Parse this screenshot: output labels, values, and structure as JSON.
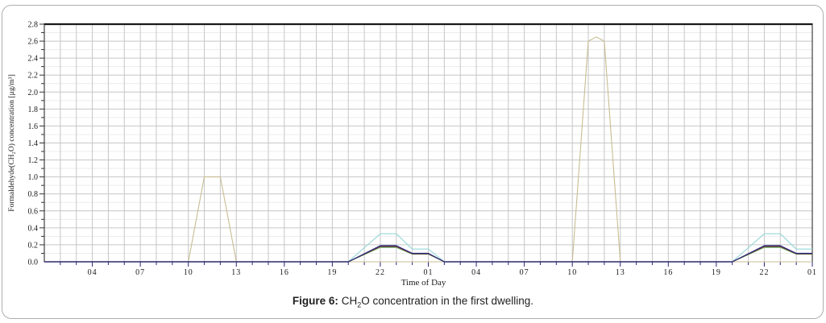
{
  "figure": {
    "caption": {
      "label": "Figure 6:",
      "chem_pre": " CH",
      "chem_sub": "2",
      "rest": "O concentration in the first dwelling."
    }
  },
  "chart_data": {
    "type": "line",
    "title": "",
    "xlabel": "Time of Day",
    "ylabel": "Formaldehyde(CH₂O) concentration [µg/m³]",
    "x_domain_hours": [
      0,
      48
    ],
    "x_domain_note": "hour 0 = 01:00 of day 1; axis spans 48 h across two days",
    "xtick_step_hours": 3,
    "xtick_labels": [
      "04",
      "07",
      "10",
      "13",
      "16",
      "19",
      "22",
      "01",
      "04",
      "07",
      "10",
      "13",
      "16",
      "19",
      "22",
      "01"
    ],
    "ylim": [
      0,
      2.8
    ],
    "ytick_step": 0.2,
    "ytick_labels": [
      "0.0",
      "0.2",
      "0.4",
      "0.6",
      "0.8",
      "1.0",
      "1.2",
      "1.4",
      "1.6",
      "1.8",
      "2.0",
      "2.2",
      "2.4",
      "2.6",
      "2.8"
    ],
    "grid": {
      "vertical_every_hours": 1,
      "horizontal_every": 0.2,
      "horizontal_minor_every": 0.1,
      "on": true
    },
    "legend": "none",
    "series": [
      {
        "name": "daytime-peaks-tan",
        "color": "#c9bd93",
        "width": 1.1,
        "points": [
          [
            0,
            0
          ],
          [
            9,
            0
          ],
          [
            10,
            1.0
          ],
          [
            11,
            1.0
          ],
          [
            12,
            0
          ],
          [
            33,
            0
          ],
          [
            34,
            2.6
          ],
          [
            34.5,
            2.65
          ],
          [
            35,
            2.6
          ],
          [
            36,
            0
          ],
          [
            48,
            0
          ]
        ]
      },
      {
        "name": "evening-cyan",
        "color": "#96d7d7",
        "width": 1.1,
        "points": [
          [
            0,
            0
          ],
          [
            19,
            0
          ],
          [
            21,
            0.33
          ],
          [
            22,
            0.33
          ],
          [
            23,
            0.15
          ],
          [
            24,
            0.15
          ],
          [
            25,
            0
          ],
          [
            43,
            0
          ],
          [
            45,
            0.33
          ],
          [
            46,
            0.33
          ],
          [
            47,
            0.15
          ],
          [
            48,
            0.15
          ]
        ]
      },
      {
        "name": "evening-green",
        "color": "#5fae5f",
        "width": 1.2,
        "points": [
          [
            0,
            0
          ],
          [
            19,
            0
          ],
          [
            21,
            0.17
          ],
          [
            22,
            0.17
          ],
          [
            23,
            0.09
          ],
          [
            24,
            0.09
          ],
          [
            25,
            0
          ],
          [
            43,
            0
          ],
          [
            45,
            0.17
          ],
          [
            46,
            0.17
          ],
          [
            47,
            0.09
          ],
          [
            48,
            0.09
          ]
        ]
      },
      {
        "name": "evening-maroon",
        "color": "#803030",
        "width": 1.2,
        "points": [
          [
            0,
            0
          ],
          [
            19,
            0
          ],
          [
            21,
            0.18
          ],
          [
            22,
            0.18
          ],
          [
            23,
            0.095
          ],
          [
            24,
            0.095
          ],
          [
            25,
            0
          ],
          [
            43,
            0
          ],
          [
            45,
            0.18
          ],
          [
            46,
            0.18
          ],
          [
            47,
            0.095
          ],
          [
            48,
            0.095
          ]
        ]
      },
      {
        "name": "evening-navy-baseline",
        "color": "#26267e",
        "width": 1.2,
        "points": [
          [
            0,
            0
          ],
          [
            19,
            0
          ],
          [
            21,
            0.19
          ],
          [
            22,
            0.19
          ],
          [
            23,
            0.1
          ],
          [
            24,
            0.1
          ],
          [
            25,
            0
          ],
          [
            43,
            0
          ],
          [
            45,
            0.19
          ],
          [
            46,
            0.19
          ],
          [
            47,
            0.1
          ],
          [
            48,
            0.1
          ]
        ]
      }
    ],
    "colors": {
      "grid_major": "#c6c6c6",
      "grid_minor": "#ececec",
      "frame": "#1a1a1a",
      "x_ticks": "#26267e",
      "y_ticks": "#333333",
      "text": "#1a1a1a"
    }
  }
}
